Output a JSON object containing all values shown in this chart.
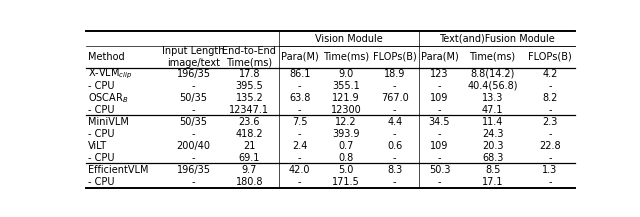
{
  "figsize": [
    6.4,
    2.17
  ],
  "dpi": 100,
  "rows": [
    [
      "X-VLM$_{clip}$",
      "196/35",
      "17.8",
      "86.1",
      "9.0",
      "18.9",
      "123",
      "8.8(14.2)",
      "4.2"
    ],
    [
      "- CPU",
      "-",
      "395.5",
      "-",
      "355.1",
      "-",
      "-",
      "40.4(56.8)",
      "-"
    ],
    [
      "OSCAR$_B$",
      "50/35",
      "135.2",
      "63.8",
      "121.9",
      "767.0",
      "109",
      "13.3",
      "8.2"
    ],
    [
      "- CPU",
      "-",
      "12347.1",
      "-",
      "12300",
      "-",
      "-",
      "47.1",
      "-"
    ],
    [
      "MiniVLM",
      "50/35",
      "23.6",
      "7.5",
      "12.2",
      "4.4",
      "34.5",
      "11.4",
      "2.3"
    ],
    [
      "- CPU",
      "-",
      "418.2",
      "-",
      "393.9",
      "-",
      "-",
      "24.3",
      "-"
    ],
    [
      "ViLT",
      "200/40",
      "21",
      "2.4",
      "0.7",
      "0.6",
      "109",
      "20.3",
      "22.8"
    ],
    [
      "- CPU",
      "-",
      "69.1",
      "-",
      "0.8",
      "-",
      "-",
      "68.3",
      "-"
    ],
    [
      "EfficientVLM",
      "196/35",
      "9.7",
      "42.0",
      "5.0",
      "8.3",
      "50.3",
      "8.5",
      "1.3"
    ],
    [
      "- CPU",
      "-",
      "180.8",
      "-",
      "171.5",
      "-",
      "-",
      "17.1",
      "-"
    ]
  ],
  "group_separators_after_row": [
    3,
    7
  ],
  "col_labels": [
    "Method",
    "Input Length\nimage/text",
    "End-to-End\nTime(ms)",
    "Para(M)",
    "Time(ms)",
    "FLOPs(B)",
    "Para(M)",
    "Time(ms)",
    "FLOPs(B)"
  ],
  "vision_module_cols": [
    3,
    4,
    5
  ],
  "fusion_module_cols": [
    6,
    7,
    8
  ],
  "font_size": 7,
  "background_color": "#ffffff"
}
